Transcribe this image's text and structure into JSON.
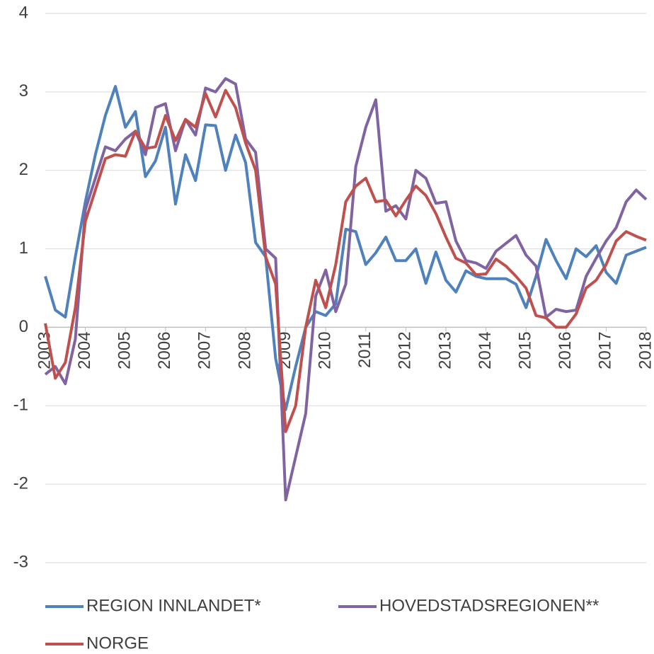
{
  "chart_data": {
    "type": "line",
    "x": [
      2003,
      2003.25,
      2003.5,
      2003.75,
      2004,
      2004.25,
      2004.5,
      2004.75,
      2005,
      2005.25,
      2005.5,
      2005.75,
      2006,
      2006.25,
      2006.5,
      2006.75,
      2007,
      2007.25,
      2007.5,
      2007.75,
      2008,
      2008.25,
      2008.5,
      2008.75,
      2009,
      2009.25,
      2009.5,
      2009.75,
      2010,
      2010.25,
      2010.5,
      2010.75,
      2011,
      2011.25,
      2011.5,
      2011.75,
      2012,
      2012.25,
      2012.5,
      2012.75,
      2013,
      2013.25,
      2013.5,
      2013.75,
      2014,
      2014.25,
      2014.5,
      2014.75,
      2015,
      2015.25,
      2015.5,
      2015.75,
      2016,
      2016.25,
      2016.5,
      2016.75,
      2017,
      2017.25,
      2017.5,
      2017.75,
      2018
    ],
    "series": [
      {
        "name": "REGION INNLANDET*",
        "color": "#4f81bd",
        "values": [
          0.65,
          0.22,
          0.13,
          0.9,
          1.6,
          2.2,
          2.7,
          3.07,
          2.55,
          2.75,
          1.92,
          2.12,
          2.55,
          1.57,
          2.2,
          1.87,
          2.58,
          2.57,
          2.0,
          2.45,
          2.1,
          1.08,
          0.9,
          -0.4,
          -1.05,
          -0.5,
          0.0,
          0.2,
          0.15,
          0.3,
          1.25,
          1.22,
          0.8,
          0.95,
          1.15,
          0.85,
          0.85,
          1.0,
          0.56,
          0.96,
          0.6,
          0.45,
          0.72,
          0.65,
          0.62,
          0.62,
          0.62,
          0.55,
          0.25,
          0.65,
          1.12,
          0.85,
          0.62,
          1.0,
          0.9,
          1.04,
          0.7,
          0.56,
          0.92,
          0.97,
          1.02
        ]
      },
      {
        "name": "HOVEDSTADSREGIONEN**",
        "color": "#8064a2",
        "values": [
          -0.6,
          -0.5,
          -0.72,
          -0.15,
          1.5,
          1.9,
          2.3,
          2.25,
          2.4,
          2.5,
          2.2,
          2.8,
          2.85,
          2.25,
          2.65,
          2.45,
          3.05,
          3.0,
          3.17,
          3.1,
          2.4,
          2.23,
          1.0,
          0.88,
          -2.2,
          -1.65,
          -1.1,
          0.4,
          0.73,
          0.2,
          0.55,
          2.05,
          2.55,
          2.9,
          1.48,
          1.55,
          1.38,
          2.0,
          1.9,
          1.58,
          1.6,
          1.1,
          0.85,
          0.82,
          0.75,
          0.97,
          1.07,
          1.17,
          0.92,
          0.78,
          0.13,
          0.23,
          0.2,
          0.22,
          0.65,
          0.88,
          1.1,
          1.27,
          1.6,
          1.75,
          1.63
        ]
      },
      {
        "name": "NORGE",
        "color": "#c0504d",
        "values": [
          0.05,
          -0.65,
          -0.45,
          0.25,
          1.35,
          1.75,
          2.15,
          2.2,
          2.18,
          2.5,
          2.28,
          2.3,
          2.7,
          2.38,
          2.65,
          2.55,
          2.98,
          2.68,
          3.02,
          2.8,
          2.35,
          2.0,
          0.9,
          0.55,
          -1.33,
          -1.0,
          0.0,
          0.6,
          0.25,
          0.8,
          1.6,
          1.8,
          1.9,
          1.6,
          1.62,
          1.42,
          1.62,
          1.8,
          1.68,
          1.45,
          1.15,
          0.88,
          0.82,
          0.67,
          0.68,
          0.87,
          0.78,
          0.65,
          0.5,
          0.15,
          0.12,
          0.0,
          0.0,
          0.17,
          0.5,
          0.6,
          0.8,
          1.1,
          1.22,
          1.16,
          1.11
        ]
      }
    ],
    "xlim": [
      2003,
      2018
    ],
    "xticks": [
      2003,
      2004,
      2005,
      2006,
      2007,
      2008,
      2009,
      2010,
      2011,
      2012,
      2013,
      2014,
      2015,
      2016,
      2017,
      2018
    ],
    "ylim": [
      -3,
      4
    ],
    "yticks": [
      -3,
      -2,
      -1,
      0,
      1,
      2,
      3,
      4
    ],
    "grid": true,
    "legend": "bottom"
  }
}
